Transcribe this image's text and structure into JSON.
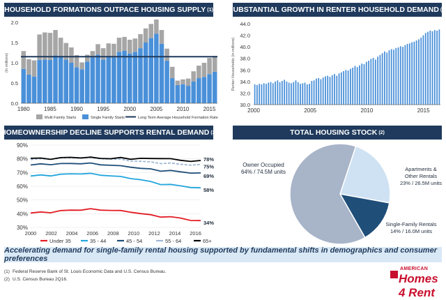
{
  "titles": {
    "p1": "HOUSEHOLD FORMATIONS OUTPACE HOUSING SUPPLY",
    "p2": "SUBSTANTIAL GROWTH IN RENTER HOUSEHOLD DEMAND",
    "p3": "HOMEOWNERSHIP DECLINE SUPPORTS RENTAL DEMAND",
    "p4": "TOTAL HOUSING STOCK",
    "note1": "(1)",
    "note2": "(2)"
  },
  "chart_data": [
    {
      "type": "bar",
      "stacked": true,
      "ylabel": "(In millions)",
      "ylim": [
        0,
        2.0
      ],
      "yticks": [
        "0.0",
        "0.5",
        "1.0",
        "1.5",
        "2.0"
      ],
      "xticks": [
        "1980",
        "1985",
        "1990",
        "1995",
        "2000",
        "2005",
        "2010",
        "2015"
      ],
      "x": [
        1980,
        1981,
        1982,
        1983,
        1984,
        1985,
        1986,
        1987,
        1988,
        1989,
        1990,
        1991,
        1992,
        1993,
        1994,
        1995,
        1996,
        1997,
        1998,
        1999,
        2000,
        2001,
        2002,
        2003,
        2004,
        2005,
        2006,
        2007,
        2008,
        2009,
        2010,
        2011,
        2012,
        2013,
        2014,
        2015,
        2016
      ],
      "series": [
        {
          "name": "Single Family Starts",
          "color": "#4a90d9",
          "values": [
            0.85,
            0.71,
            0.66,
            1.07,
            1.08,
            1.07,
            1.18,
            1.15,
            1.08,
            1.0,
            0.89,
            0.84,
            1.03,
            1.13,
            1.2,
            1.08,
            1.16,
            1.13,
            1.27,
            1.3,
            1.23,
            1.27,
            1.36,
            1.5,
            1.61,
            1.72,
            1.47,
            1.05,
            0.62,
            0.45,
            0.47,
            0.43,
            0.54,
            0.62,
            0.65,
            0.72,
            0.78
          ]
        },
        {
          "name": "Multi Family Starts",
          "color": "#a6a6a6",
          "values": [
            0.44,
            0.38,
            0.4,
            0.63,
            0.67,
            0.67,
            0.63,
            0.47,
            0.41,
            0.38,
            0.3,
            0.17,
            0.17,
            0.16,
            0.26,
            0.28,
            0.32,
            0.34,
            0.35,
            0.34,
            0.34,
            0.33,
            0.35,
            0.35,
            0.35,
            0.35,
            0.34,
            0.3,
            0.28,
            0.11,
            0.12,
            0.18,
            0.25,
            0.31,
            0.35,
            0.4,
            0.39
          ]
        }
      ],
      "reference_line": {
        "name": "Long Term Average Household Formation Rate",
        "value": 1.15,
        "color": "#1f3a5c"
      }
    },
    {
      "type": "bar",
      "ylabel": "Renter Households (in millions)",
      "ylim": [
        30.0,
        44.0
      ],
      "yticks": [
        "30.0",
        "32.0",
        "34.0",
        "36.0",
        "38.0",
        "40.0",
        "42.0",
        "44.0"
      ],
      "xticks": [
        "2000",
        "2005",
        "2010",
        "2015"
      ],
      "color": "#4a90d9",
      "x_start": 2000,
      "x_end": 2016.5,
      "values": [
        33.5,
        33.4,
        33.6,
        33.5,
        33.7,
        33.6,
        33.8,
        33.9,
        33.7,
        34.0,
        34.2,
        33.9,
        34.1,
        34.3,
        34.0,
        33.8,
        33.7,
        33.9,
        34.2,
        33.9,
        33.6,
        33.7,
        33.8,
        33.5,
        33.6,
        34.1,
        34.2,
        34.5,
        34.6,
        34.4,
        34.7,
        34.9,
        35.0,
        34.8,
        35.1,
        35.3,
        35.0,
        35.4,
        35.6,
        35.8,
        36.0,
        35.9,
        36.2,
        36.4,
        36.7,
        36.5,
        36.8,
        37.1,
        37.0,
        37.4,
        37.6,
        37.9,
        38.1,
        37.8,
        38.3,
        38.6,
        38.9,
        39.2,
        39.0,
        39.4,
        39.6,
        39.5,
        39.8,
        39.9,
        40.1,
        40.0,
        40.3,
        40.5,
        40.6,
        40.8,
        40.9,
        41.1,
        41.3,
        41.6,
        42.0,
        42.4,
        42.6,
        42.8,
        42.7,
        42.9,
        42.8,
        43.0
      ]
    },
    {
      "type": "line",
      "ylim": [
        30,
        90
      ],
      "yticks": [
        "30%",
        "40%",
        "50%",
        "60%",
        "70%",
        "80%",
        "90%"
      ],
      "xticks": [
        "2000",
        "2002",
        "2004",
        "2006",
        "2008",
        "2010",
        "2012",
        "2014",
        "2016"
      ],
      "x_range": [
        2000,
        2016.5
      ],
      "series": [
        {
          "name": "Under 35",
          "color": "#e31b23",
          "end_label": "34%",
          "values": [
            40.5,
            40.9,
            41.2,
            42.0,
            42.5,
            43.0,
            43.2,
            42.8,
            42.6,
            41.9,
            41.5,
            40.0,
            39.0,
            38.0,
            37.5,
            36.8,
            35.5,
            34.5
          ]
        },
        {
          "name": "35 - 44",
          "color": "#22a5dd",
          "end_label": "58%",
          "values": [
            67.5,
            67.9,
            68.0,
            68.5,
            69.0,
            69.4,
            69.0,
            68.2,
            67.8,
            66.7,
            66.0,
            64.7,
            63.2,
            61.7,
            61.0,
            60.3,
            59.5,
            58.4
          ]
        },
        {
          "name": "45 - 54",
          "color": "#1f4e79",
          "end_label": "69%",
          "values": [
            75.5,
            76.0,
            76.2,
            76.3,
            76.5,
            76.8,
            76.5,
            75.8,
            75.5,
            74.5,
            74.3,
            73.0,
            72.4,
            71.5,
            71.2,
            70.5,
            70.0,
            69.2
          ]
        },
        {
          "name": "55 - 64",
          "color": "#9db8d4",
          "end_label": "75%",
          "values": [
            79.5,
            79.8,
            80.0,
            80.4,
            80.7,
            80.9,
            80.6,
            80.2,
            80.0,
            79.3,
            78.8,
            78.1,
            77.5,
            77.0,
            76.6,
            76.0,
            75.8,
            75.4
          ]
        },
        {
          "name": "65+",
          "color": "#000000",
          "end_label": "78%",
          "values": [
            80.4,
            80.2,
            80.1,
            80.6,
            81.0,
            81.1,
            80.8,
            80.5,
            80.3,
            80.5,
            80.1,
            80.3,
            79.9,
            80.7,
            79.8,
            78.9,
            78.5,
            78.3
          ]
        }
      ]
    },
    {
      "type": "pie",
      "slices": [
        {
          "name": "Owner Occupied",
          "detail": "64% / 74.5M units",
          "value": 64,
          "color": "#a8b4c8"
        },
        {
          "name": "Apartments & Other Rentals",
          "detail": "23% / 26.5M units",
          "value": 23,
          "color": "#cfe2f3"
        },
        {
          "name": "Single-Family Rentals",
          "detail": "14% / 16.0M units",
          "value": 14,
          "color": "#1f4e79"
        }
      ]
    }
  ],
  "pie_labels": {
    "owner_1": "Owner Occupied",
    "owner_2": "64% / 74.5M units",
    "apt_1": "Apartments &",
    "apt_2": "Other Rentals",
    "apt_3": "23% / 26.5M units",
    "sfr_1": "Single-Family Rentals",
    "sfr_2": "14% / 16.0M units"
  },
  "tagline": "Accelerating demand for single-family rental housing supported by fundamental shifts in demographics and consumer preferences",
  "footnotes": [
    {
      "num": "(1)",
      "text": "Federal Reserve Bank of St. Louis Economic Data and U.S. Census Bureau."
    },
    {
      "num": "(2)",
      "text": "U.S. Census Bureau 2Q16."
    }
  ],
  "logo": {
    "top": "AMERICAN",
    "bottom": "Homes 4 Rent"
  }
}
